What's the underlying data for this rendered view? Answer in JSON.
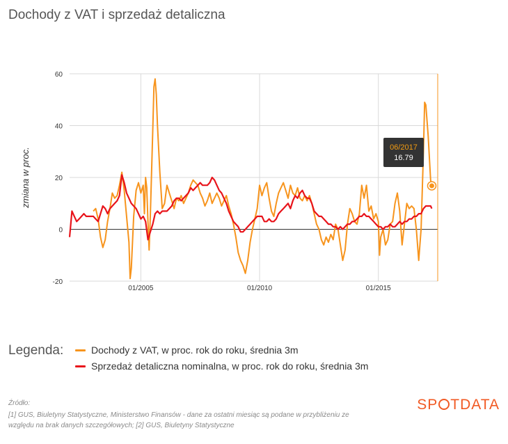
{
  "title": "Dochody z VAT i sprzedaż detaliczna",
  "legend": {
    "title": "Legenda:",
    "items": [
      {
        "label": "Dochody z VAT, w proc. rok do roku, średnia 3m",
        "color": "#f7941d"
      },
      {
        "label": "Sprzedaż detaliczna nominalna, w proc. rok do roku, średnia 3m",
        "color": "#e8141b"
      }
    ]
  },
  "source": {
    "line1": "Źródło:",
    "line2": "[1] GUS, Biuletyny Statystyczne, Ministerstwo Finansów - dane za ostatni miesiąc są podane w przybliżeniu ze",
    "line3": "względu na brak danych szczegółowych; [2] GUS, Biuletyny Statystyczne"
  },
  "brand": {
    "pre": "SP",
    "post": "TDATA"
  },
  "tooltip": {
    "date": "06/2017",
    "value": "16.79"
  },
  "chart_data": {
    "type": "line",
    "title": "Dochody z VAT i sprzedaż detaliczna",
    "ylabel": "zmiana w proc.",
    "xlabel": "",
    "ylim": [
      -20,
      60
    ],
    "yticks": [
      "60",
      "40",
      "20",
      "0",
      "-20"
    ],
    "xlim": [
      2002.0,
      2017.5
    ],
    "xticks": [
      {
        "label": "01/2005",
        "x": 2005.0
      },
      {
        "label": "01/2010",
        "x": 2010.0
      },
      {
        "label": "01/2015",
        "x": 2015.0
      }
    ],
    "crosshair_x": 2017.5,
    "series": [
      {
        "name": "Dochody z VAT, w proc. rok do roku, średnia 3m",
        "color": "#f7941d",
        "points": [
          [
            2003.0,
            7
          ],
          [
            2003.1,
            8
          ],
          [
            2003.2,
            4
          ],
          [
            2003.3,
            -3
          ],
          [
            2003.4,
            -7
          ],
          [
            2003.5,
            -4
          ],
          [
            2003.6,
            3
          ],
          [
            2003.7,
            8
          ],
          [
            2003.8,
            14
          ],
          [
            2003.9,
            12
          ],
          [
            2004.0,
            13
          ],
          [
            2004.1,
            17
          ],
          [
            2004.2,
            22
          ],
          [
            2004.3,
            15
          ],
          [
            2004.4,
            5
          ],
          [
            2004.5,
            -5
          ],
          [
            2004.55,
            -19
          ],
          [
            2004.6,
            -15
          ],
          [
            2004.7,
            5
          ],
          [
            2004.8,
            15
          ],
          [
            2004.9,
            18
          ],
          [
            2005.0,
            14
          ],
          [
            2005.1,
            17
          ],
          [
            2005.15,
            6
          ],
          [
            2005.2,
            20
          ],
          [
            2005.25,
            16
          ],
          [
            2005.3,
            3
          ],
          [
            2005.35,
            -8
          ],
          [
            2005.4,
            5
          ],
          [
            2005.5,
            38
          ],
          [
            2005.55,
            55
          ],
          [
            2005.6,
            58
          ],
          [
            2005.65,
            52
          ],
          [
            2005.7,
            40
          ],
          [
            2005.8,
            22
          ],
          [
            2005.9,
            8
          ],
          [
            2006.0,
            10
          ],
          [
            2006.1,
            17
          ],
          [
            2006.2,
            14
          ],
          [
            2006.3,
            11
          ],
          [
            2006.4,
            8
          ],
          [
            2006.5,
            12
          ],
          [
            2006.6,
            11
          ],
          [
            2006.7,
            13
          ],
          [
            2006.8,
            10
          ],
          [
            2006.9,
            12
          ],
          [
            2007.0,
            14
          ],
          [
            2007.1,
            17
          ],
          [
            2007.2,
            19
          ],
          [
            2007.3,
            18
          ],
          [
            2007.4,
            17
          ],
          [
            2007.5,
            14
          ],
          [
            2007.6,
            12
          ],
          [
            2007.7,
            9
          ],
          [
            2007.8,
            11
          ],
          [
            2007.9,
            14
          ],
          [
            2008.0,
            10
          ],
          [
            2008.1,
            12
          ],
          [
            2008.2,
            14
          ],
          [
            2008.3,
            12
          ],
          [
            2008.4,
            9
          ],
          [
            2008.5,
            11
          ],
          [
            2008.6,
            13
          ],
          [
            2008.7,
            9
          ],
          [
            2008.8,
            6
          ],
          [
            2008.9,
            2
          ],
          [
            2009.0,
            -3
          ],
          [
            2009.1,
            -9
          ],
          [
            2009.2,
            -12
          ],
          [
            2009.3,
            -14
          ],
          [
            2009.4,
            -17
          ],
          [
            2009.5,
            -12
          ],
          [
            2009.6,
            -5
          ],
          [
            2009.7,
            0
          ],
          [
            2009.8,
            4
          ],
          [
            2009.9,
            8
          ],
          [
            2010.0,
            17
          ],
          [
            2010.1,
            13
          ],
          [
            2010.2,
            16
          ],
          [
            2010.3,
            18
          ],
          [
            2010.4,
            12
          ],
          [
            2010.5,
            7
          ],
          [
            2010.6,
            5
          ],
          [
            2010.7,
            10
          ],
          [
            2010.8,
            14
          ],
          [
            2010.9,
            16
          ],
          [
            2011.0,
            18
          ],
          [
            2011.1,
            15
          ],
          [
            2011.2,
            12
          ],
          [
            2011.3,
            17
          ],
          [
            2011.4,
            14
          ],
          [
            2011.5,
            13
          ],
          [
            2011.6,
            16
          ],
          [
            2011.7,
            12
          ],
          [
            2011.8,
            11
          ],
          [
            2011.9,
            13
          ],
          [
            2012.0,
            11
          ],
          [
            2012.1,
            13
          ],
          [
            2012.2,
            10
          ],
          [
            2012.3,
            6
          ],
          [
            2012.4,
            2
          ],
          [
            2012.5,
            0
          ],
          [
            2012.6,
            -4
          ],
          [
            2012.7,
            -6
          ],
          [
            2012.8,
            -3
          ],
          [
            2012.9,
            -5
          ],
          [
            2013.0,
            -2
          ],
          [
            2013.1,
            -4
          ],
          [
            2013.2,
            2
          ],
          [
            2013.3,
            0
          ],
          [
            2013.4,
            -6
          ],
          [
            2013.5,
            -12
          ],
          [
            2013.6,
            -8
          ],
          [
            2013.7,
            2
          ],
          [
            2013.8,
            8
          ],
          [
            2013.9,
            6
          ],
          [
            2014.0,
            3
          ],
          [
            2014.1,
            2
          ],
          [
            2014.2,
            6
          ],
          [
            2014.3,
            17
          ],
          [
            2014.4,
            12
          ],
          [
            2014.5,
            17
          ],
          [
            2014.6,
            7
          ],
          [
            2014.7,
            9
          ],
          [
            2014.8,
            4
          ],
          [
            2014.9,
            6
          ],
          [
            2015.0,
            3
          ],
          [
            2015.05,
            -10
          ],
          [
            2015.1,
            -3
          ],
          [
            2015.2,
            0
          ],
          [
            2015.3,
            -6
          ],
          [
            2015.4,
            -4
          ],
          [
            2015.5,
            2
          ],
          [
            2015.6,
            3
          ],
          [
            2015.7,
            10
          ],
          [
            2015.8,
            14
          ],
          [
            2015.9,
            7
          ],
          [
            2016.0,
            -6
          ],
          [
            2016.1,
            2
          ],
          [
            2016.2,
            10
          ],
          [
            2016.3,
            8
          ],
          [
            2016.4,
            9
          ],
          [
            2016.5,
            8
          ],
          [
            2016.6,
            0
          ],
          [
            2016.7,
            -12
          ],
          [
            2016.75,
            -6
          ],
          [
            2016.8,
            0
          ],
          [
            2016.9,
            30
          ],
          [
            2016.95,
            49
          ],
          [
            2017.0,
            48
          ],
          [
            2017.1,
            36
          ],
          [
            2017.2,
            19
          ],
          [
            2017.25,
            16.79
          ]
        ]
      },
      {
        "name": "Sprzedaż detaliczna nominalna, w proc. rok do roku, średnia 3m",
        "color": "#e8141b",
        "points": [
          [
            2002.0,
            -3
          ],
          [
            2002.1,
            7
          ],
          [
            2002.2,
            5
          ],
          [
            2002.3,
            3
          ],
          [
            2002.4,
            4
          ],
          [
            2002.5,
            5
          ],
          [
            2002.6,
            6
          ],
          [
            2002.7,
            5
          ],
          [
            2002.8,
            5
          ],
          [
            2002.9,
            5
          ],
          [
            2003.0,
            5
          ],
          [
            2003.1,
            4
          ],
          [
            2003.2,
            3
          ],
          [
            2003.3,
            6
          ],
          [
            2003.4,
            9
          ],
          [
            2003.5,
            8
          ],
          [
            2003.6,
            6
          ],
          [
            2003.7,
            8
          ],
          [
            2003.8,
            9
          ],
          [
            2003.9,
            10
          ],
          [
            2004.0,
            11
          ],
          [
            2004.1,
            13
          ],
          [
            2004.2,
            21
          ],
          [
            2004.3,
            18
          ],
          [
            2004.4,
            14
          ],
          [
            2004.5,
            12
          ],
          [
            2004.6,
            10
          ],
          [
            2004.7,
            9
          ],
          [
            2004.8,
            8
          ],
          [
            2004.9,
            6
          ],
          [
            2005.0,
            4
          ],
          [
            2005.1,
            5
          ],
          [
            2005.2,
            3
          ],
          [
            2005.3,
            -4
          ],
          [
            2005.4,
            -1
          ],
          [
            2005.5,
            2
          ],
          [
            2005.6,
            6
          ],
          [
            2005.7,
            7
          ],
          [
            2005.8,
            6
          ],
          [
            2005.9,
            7
          ],
          [
            2006.0,
            7
          ],
          [
            2006.1,
            7
          ],
          [
            2006.2,
            8
          ],
          [
            2006.3,
            9
          ],
          [
            2006.4,
            11
          ],
          [
            2006.5,
            12
          ],
          [
            2006.6,
            12
          ],
          [
            2006.7,
            11
          ],
          [
            2006.8,
            12
          ],
          [
            2006.9,
            13
          ],
          [
            2007.0,
            14
          ],
          [
            2007.1,
            16
          ],
          [
            2007.2,
            15
          ],
          [
            2007.3,
            16
          ],
          [
            2007.4,
            17
          ],
          [
            2007.5,
            18
          ],
          [
            2007.6,
            17
          ],
          [
            2007.7,
            17
          ],
          [
            2007.8,
            17
          ],
          [
            2007.9,
            18
          ],
          [
            2008.0,
            20
          ],
          [
            2008.1,
            19
          ],
          [
            2008.2,
            17
          ],
          [
            2008.3,
            15
          ],
          [
            2008.4,
            14
          ],
          [
            2008.5,
            12
          ],
          [
            2008.6,
            10
          ],
          [
            2008.7,
            7
          ],
          [
            2008.8,
            5
          ],
          [
            2008.9,
            3
          ],
          [
            2009.0,
            2
          ],
          [
            2009.1,
            1
          ],
          [
            2009.2,
            -1
          ],
          [
            2009.3,
            -1
          ],
          [
            2009.4,
            0
          ],
          [
            2009.5,
            1
          ],
          [
            2009.6,
            2
          ],
          [
            2009.7,
            3
          ],
          [
            2009.8,
            4
          ],
          [
            2009.9,
            5
          ],
          [
            2010.0,
            5
          ],
          [
            2010.1,
            5
          ],
          [
            2010.2,
            3
          ],
          [
            2010.3,
            3
          ],
          [
            2010.4,
            4
          ],
          [
            2010.5,
            3
          ],
          [
            2010.6,
            3
          ],
          [
            2010.7,
            4
          ],
          [
            2010.8,
            6
          ],
          [
            2010.9,
            7
          ],
          [
            2011.0,
            8
          ],
          [
            2011.1,
            9
          ],
          [
            2011.2,
            10
          ],
          [
            2011.3,
            8
          ],
          [
            2011.4,
            11
          ],
          [
            2011.5,
            13
          ],
          [
            2011.6,
            12
          ],
          [
            2011.7,
            14
          ],
          [
            2011.8,
            15
          ],
          [
            2011.9,
            13
          ],
          [
            2012.0,
            12
          ],
          [
            2012.1,
            12
          ],
          [
            2012.2,
            10
          ],
          [
            2012.3,
            7
          ],
          [
            2012.4,
            6
          ],
          [
            2012.5,
            5
          ],
          [
            2012.6,
            5
          ],
          [
            2012.7,
            4
          ],
          [
            2012.8,
            3
          ],
          [
            2012.9,
            2
          ],
          [
            2013.0,
            2
          ],
          [
            2013.1,
            1
          ],
          [
            2013.2,
            1
          ],
          [
            2013.3,
            0
          ],
          [
            2013.4,
            1
          ],
          [
            2013.5,
            0
          ],
          [
            2013.6,
            1
          ],
          [
            2013.7,
            2
          ],
          [
            2013.8,
            2
          ],
          [
            2013.9,
            3
          ],
          [
            2014.0,
            3
          ],
          [
            2014.1,
            4
          ],
          [
            2014.2,
            5
          ],
          [
            2014.3,
            5
          ],
          [
            2014.4,
            6
          ],
          [
            2014.5,
            5
          ],
          [
            2014.6,
            5
          ],
          [
            2014.7,
            4
          ],
          [
            2014.8,
            3
          ],
          [
            2014.9,
            2
          ],
          [
            2015.0,
            1
          ],
          [
            2015.1,
            1
          ],
          [
            2015.2,
            0
          ],
          [
            2015.3,
            1
          ],
          [
            2015.4,
            1
          ],
          [
            2015.5,
            2
          ],
          [
            2015.6,
            1
          ],
          [
            2015.7,
            1
          ],
          [
            2015.8,
            2
          ],
          [
            2015.9,
            3
          ],
          [
            2016.0,
            2
          ],
          [
            2016.1,
            3
          ],
          [
            2016.2,
            3
          ],
          [
            2016.3,
            4
          ],
          [
            2016.4,
            4
          ],
          [
            2016.5,
            5
          ],
          [
            2016.6,
            5
          ],
          [
            2016.7,
            6
          ],
          [
            2016.8,
            6
          ],
          [
            2016.9,
            8
          ],
          [
            2017.0,
            9
          ],
          [
            2017.1,
            9
          ],
          [
            2017.2,
            9
          ],
          [
            2017.25,
            8
          ]
        ]
      }
    ]
  }
}
